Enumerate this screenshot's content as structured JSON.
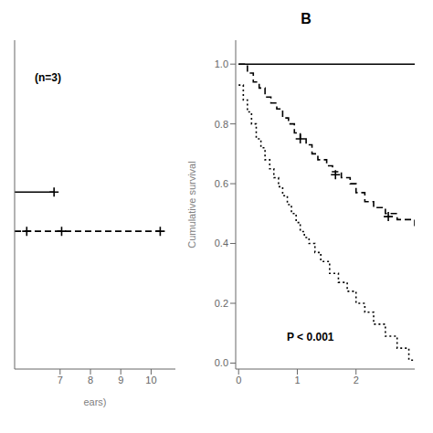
{
  "chart_data": [
    {
      "type": "line",
      "xlabel": "ears)",
      "annotations": [
        "(n=3)"
      ],
      "xlim": [
        5.5,
        10.8
      ],
      "xticks": [
        7,
        8,
        9,
        10
      ],
      "ylim": [
        0.0,
        1.05
      ],
      "tick_labels": "x",
      "series": [
        {
          "type": "line",
          "line_style": "solid",
          "color": "#000000",
          "x": [
            5.5,
            6.8
          ],
          "values": [
            0.565,
            0.565
          ]
        },
        {
          "type": "scatter",
          "marker": "plus",
          "color": "#000000",
          "x": [
            6.8
          ],
          "values": [
            0.565
          ]
        },
        {
          "type": "line",
          "line_style": "dashed",
          "color": "#000000",
          "x": [
            5.5,
            10.3
          ],
          "values": [
            0.44,
            0.44
          ]
        },
        {
          "type": "scatter",
          "marker": "plus",
          "color": "#000000",
          "x": [
            5.9,
            7.05,
            10.3
          ],
          "values": [
            0.44,
            0.44,
            0.44
          ]
        }
      ]
    },
    {
      "type": "line",
      "title": "B",
      "ylabel": "Cumulative survival",
      "annotations": [
        "P < 0.001"
      ],
      "xlim": [
        -0.05,
        3.0
      ],
      "xticks": [
        0,
        1,
        2
      ],
      "ylim": [
        -0.02,
        1.08
      ],
      "yticks": [
        {
          "value": 0.0,
          "label": "0.0"
        },
        0.2,
        0.4,
        0.6,
        0.8,
        {
          "value": 1.0,
          "label": "1.0"
        }
      ],
      "series": [
        {
          "type": "line",
          "line_style": "solid",
          "color": "#000000",
          "x": [
            0.0,
            3.0
          ],
          "values": [
            1.0,
            1.0
          ]
        },
        {
          "type": "step",
          "line_style": "dashed",
          "color": "#000000",
          "x": [
            0.0,
            0.15,
            0.25,
            0.35,
            0.45,
            0.55,
            0.65,
            0.75,
            0.85,
            0.95,
            1.05,
            1.15,
            1.25,
            1.35,
            1.5,
            1.6,
            1.75,
            1.9,
            2.0,
            2.15,
            2.3,
            2.5,
            2.7,
            3.0
          ],
          "values": [
            1.0,
            0.97,
            0.94,
            0.92,
            0.89,
            0.87,
            0.85,
            0.82,
            0.8,
            0.77,
            0.75,
            0.73,
            0.7,
            0.68,
            0.66,
            0.64,
            0.62,
            0.6,
            0.57,
            0.54,
            0.52,
            0.5,
            0.48,
            0.45
          ]
        },
        {
          "type": "scatter",
          "marker": "plus",
          "color": "#000000",
          "x": [
            1.05,
            1.65,
            2.55
          ],
          "values": [
            0.75,
            0.63,
            0.49
          ]
        },
        {
          "type": "step",
          "line_style": "dotted",
          "color": "#000000",
          "x": [
            0.0,
            0.08,
            0.15,
            0.22,
            0.3,
            0.38,
            0.45,
            0.53,
            0.6,
            0.68,
            0.75,
            0.83,
            0.9,
            0.98,
            1.05,
            1.12,
            1.2,
            1.3,
            1.4,
            1.55,
            1.7,
            1.85,
            2.0,
            2.15,
            2.3,
            2.5,
            2.7,
            2.9,
            3.0
          ],
          "values": [
            0.93,
            0.88,
            0.84,
            0.8,
            0.75,
            0.72,
            0.68,
            0.65,
            0.62,
            0.59,
            0.56,
            0.53,
            0.5,
            0.47,
            0.44,
            0.42,
            0.4,
            0.37,
            0.34,
            0.3,
            0.27,
            0.24,
            0.2,
            0.17,
            0.13,
            0.09,
            0.05,
            0.01,
            0.01
          ]
        }
      ]
    }
  ]
}
